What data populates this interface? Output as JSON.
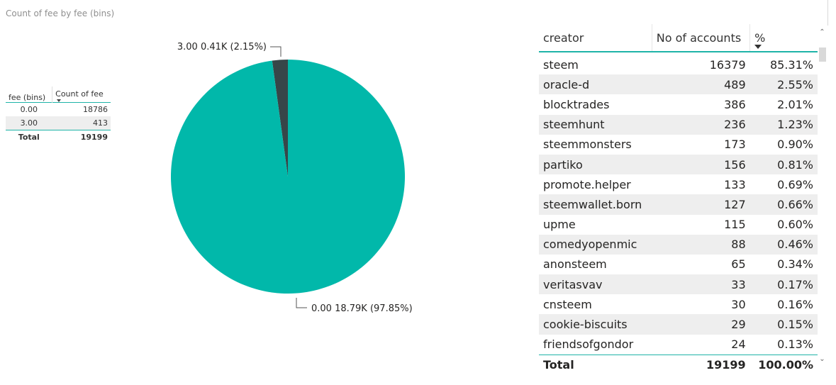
{
  "title": "Count of fee by fee (bins)",
  "colors": {
    "accent": "#1fb3a8",
    "slice_large": "#01b8aa",
    "slice_small": "#374649"
  },
  "fee_table": {
    "headers": [
      "fee (bins)",
      "Count of fee"
    ],
    "rows": [
      [
        "0.00",
        "18786"
      ],
      [
        "3.00",
        "413"
      ]
    ],
    "total": [
      "Total",
      "19199"
    ]
  },
  "chart_data": {
    "type": "pie",
    "title": "Count of fee by fee (bins)",
    "categories": [
      "0.00",
      "3.00"
    ],
    "values": [
      18786,
      413
    ],
    "labels": [
      "0.00 18.79K (97.85%)",
      "3.00 0.41K (2.15%)"
    ],
    "colors": [
      "#01b8aa",
      "#374649"
    ]
  },
  "creator_table": {
    "headers": [
      "creator",
      "No of accounts",
      "%"
    ],
    "rows": [
      [
        "steem",
        "16379",
        "85.31%"
      ],
      [
        "oracle-d",
        "489",
        "2.55%"
      ],
      [
        "blocktrades",
        "386",
        "2.01%"
      ],
      [
        "steemhunt",
        "236",
        "1.23%"
      ],
      [
        "steemmonsters",
        "173",
        "0.90%"
      ],
      [
        "partiko",
        "156",
        "0.81%"
      ],
      [
        "promote.helper",
        "133",
        "0.69%"
      ],
      [
        "steemwallet.born",
        "127",
        "0.66%"
      ],
      [
        "upme",
        "115",
        "0.60%"
      ],
      [
        "comedyopenmic",
        "88",
        "0.46%"
      ],
      [
        "anonsteem",
        "65",
        "0.34%"
      ],
      [
        "veritasvav",
        "33",
        "0.17%"
      ],
      [
        "cnsteem",
        "30",
        "0.16%"
      ],
      [
        "cookie-biscuits",
        "29",
        "0.15%"
      ],
      [
        "friendsofgondor",
        "24",
        "0.13%"
      ]
    ],
    "total": [
      "Total",
      "19199",
      "100.00%"
    ]
  }
}
